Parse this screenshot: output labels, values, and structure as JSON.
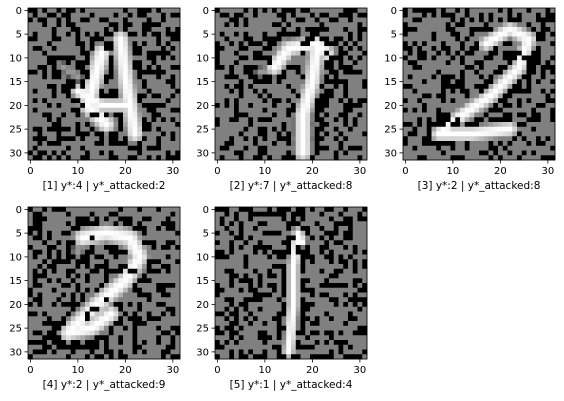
{
  "chart_data": [
    {
      "type": "heatmap",
      "caption": "[1] y*:4 | y*_attacked:2",
      "x_ticks": [
        0,
        10,
        20,
        30
      ],
      "y_ticks": [
        0,
        5,
        10,
        15,
        20,
        25,
        30
      ],
      "xlim": [
        -0.5,
        31.5
      ],
      "ylim": [
        31.5,
        -0.5
      ],
      "grid": false,
      "colormap": "gray",
      "seed": 11,
      "strokes": [
        {
          "points": [
            [
              15,
              9
            ],
            [
              12,
              20
            ],
            [
              16,
              24
            ]
          ],
          "value": 1.0,
          "width": 2.2
        },
        {
          "points": [
            [
              10,
              17
            ],
            [
              15,
              20
            ],
            [
              20,
              20
            ]
          ],
          "value": 1.0,
          "width": 1.6
        },
        {
          "points": [
            [
              19,
              6
            ],
            [
              20,
              14
            ],
            [
              22,
              26
            ]
          ],
          "value": 1.0,
          "width": 2.0
        },
        {
          "points": [
            [
              7,
              12
            ],
            [
              10,
              14
            ]
          ],
          "value": 0.6,
          "width": 1.2
        }
      ]
    },
    {
      "type": "heatmap",
      "caption": "[2] y*:7 | y*_attacked:8",
      "x_ticks": [
        0,
        10,
        20,
        30
      ],
      "y_ticks": [
        0,
        5,
        10,
        15,
        20,
        25,
        30
      ],
      "xlim": [
        -0.5,
        31.5
      ],
      "ylim": [
        31.5,
        -0.5
      ],
      "grid": false,
      "colormap": "gray",
      "seed": 23,
      "strokes": [
        {
          "points": [
            [
              12,
              12
            ],
            [
              15,
              8
            ],
            [
              21,
              7
            ],
            [
              23,
              9
            ]
          ],
          "value": 1.0,
          "width": 2.0
        },
        {
          "points": [
            [
              21,
              8
            ],
            [
              20,
              15
            ],
            [
              18,
              22
            ],
            [
              18,
              30
            ]
          ],
          "value": 1.0,
          "width": 2.0
        },
        {
          "points": [
            [
              9,
              13
            ],
            [
              13,
              12
            ]
          ],
          "value": 0.6,
          "width": 1.2
        }
      ]
    },
    {
      "type": "heatmap",
      "caption": "[3] y*:2 | y*_attacked:8",
      "x_ticks": [
        0,
        10,
        20,
        30
      ],
      "y_ticks": [
        0,
        5,
        10,
        15,
        20,
        25,
        30
      ],
      "xlim": [
        -0.5,
        31.5
      ],
      "ylim": [
        31.5,
        -0.5
      ],
      "grid": false,
      "colormap": "gray",
      "seed": 37,
      "strokes": [
        {
          "points": [
            [
              17,
              7
            ],
            [
              22,
              4
            ],
            [
              26,
              6
            ],
            [
              24,
              12
            ]
          ],
          "value": 1.0,
          "width": 1.8
        },
        {
          "points": [
            [
              24,
              12
            ],
            [
              18,
              18
            ],
            [
              12,
              22
            ],
            [
              7,
              26
            ]
          ],
          "value": 1.0,
          "width": 1.8
        },
        {
          "points": [
            [
              7,
              26
            ],
            [
              14,
              26
            ],
            [
              22,
              25
            ]
          ],
          "value": 1.0,
          "width": 1.8
        }
      ]
    },
    {
      "type": "heatmap",
      "caption": "[4] y*:2 | y*_attacked:9",
      "x_ticks": [
        0,
        10,
        20,
        30
      ],
      "y_ticks": [
        0,
        5,
        10,
        15,
        20,
        25,
        30
      ],
      "xlim": [
        -0.5,
        31.5
      ],
      "ylim": [
        31.5,
        -0.5
      ],
      "grid": false,
      "colormap": "gray",
      "seed": 41,
      "strokes": [
        {
          "points": [
            [
              11,
              6
            ],
            [
              16,
              5
            ],
            [
              21,
              6
            ],
            [
              23,
              10
            ],
            [
              20,
              15
            ]
          ],
          "value": 1.0,
          "width": 2.2
        },
        {
          "points": [
            [
              20,
              15
            ],
            [
              14,
              20
            ],
            [
              10,
              24
            ],
            [
              8,
              26
            ]
          ],
          "value": 1.0,
          "width": 2.2
        },
        {
          "points": [
            [
              8,
              26
            ],
            [
              13,
              25
            ],
            [
              17,
              22
            ]
          ],
          "value": 1.0,
          "width": 2.0
        },
        {
          "points": [
            [
              11,
              6
            ],
            [
              10,
              9
            ]
          ],
          "value": 0.6,
          "width": 1.4
        }
      ]
    },
    {
      "type": "heatmap",
      "caption": "[5] y*:1 | y*_attacked:4",
      "x_ticks": [
        0,
        10,
        20,
        30
      ],
      "y_ticks": [
        0,
        5,
        10,
        15,
        20,
        25,
        30
      ],
      "xlim": [
        -0.5,
        31.5
      ],
      "ylim": [
        31.5,
        -0.5
      ],
      "grid": false,
      "colormap": "gray",
      "seed": 53,
      "strokes": [
        {
          "points": [
            [
              17,
              5
            ],
            [
              16,
              12
            ],
            [
              16,
              20
            ],
            [
              15,
              30
            ]
          ],
          "value": 1.0,
          "width": 1.4
        },
        {
          "points": [
            [
              17,
              5
            ],
            [
              18,
              7
            ]
          ],
          "value": 1.0,
          "width": 1.0
        }
      ]
    }
  ]
}
